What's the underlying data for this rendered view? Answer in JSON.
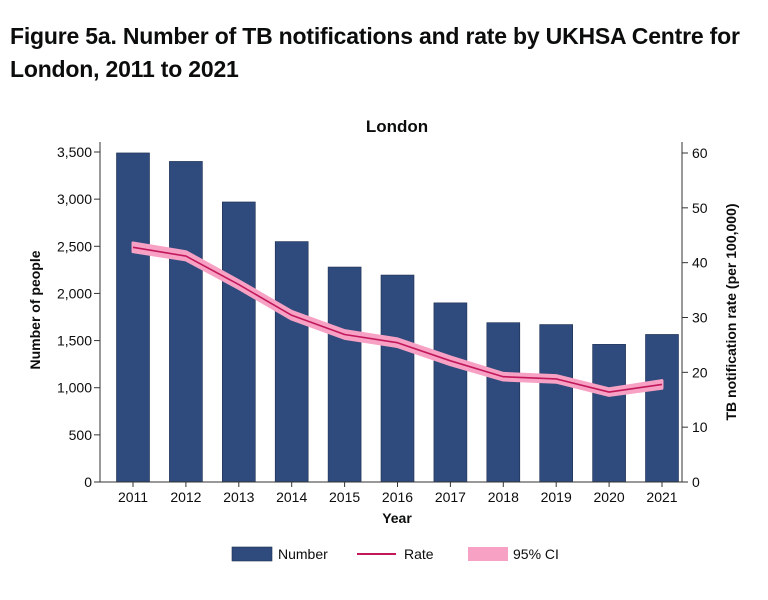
{
  "figure": {
    "title": "Figure 5a. Number of TB notifications and rate by UKHSA Centre for London, 2011 to 2021"
  },
  "chart_data": {
    "type": "bar",
    "title": "London",
    "xlabel": "Year",
    "ylabel": "Number of people",
    "y2label": "TB notification rate (per 100,000)",
    "categories": [
      "2011",
      "2012",
      "2013",
      "2014",
      "2015",
      "2016",
      "2017",
      "2018",
      "2019",
      "2020",
      "2021"
    ],
    "series": [
      {
        "name": "Number",
        "type": "bar",
        "axis": "left",
        "color": "#2f4a7c",
        "values": [
          3490,
          3400,
          2970,
          2550,
          2280,
          2195,
          1900,
          1690,
          1670,
          1460,
          1565
        ]
      },
      {
        "name": "Rate",
        "type": "line",
        "axis": "right",
        "color": "#c2185b",
        "values": [
          42.8,
          41.2,
          36.0,
          30.4,
          26.9,
          25.4,
          22.1,
          19.2,
          18.8,
          16.4,
          17.8
        ]
      },
      {
        "name": "95% CI",
        "type": "band",
        "axis": "right",
        "color": "#f7a1c4",
        "lower": [
          42.0,
          40.5,
          35.3,
          29.7,
          26.2,
          24.7,
          21.4,
          18.6,
          18.2,
          15.8,
          17.1
        ],
        "upper": [
          43.6,
          42.0,
          36.7,
          31.1,
          27.6,
          26.1,
          22.8,
          19.8,
          19.4,
          17.0,
          18.5
        ]
      }
    ],
    "ylim": [
      0,
      3500
    ],
    "yticks": [
      0,
      500,
      1000,
      1500,
      2000,
      2500,
      3000,
      3500
    ],
    "ytick_labels": [
      "0",
      "500",
      "1,000",
      "1,500",
      "2,000",
      "2,500",
      "3,000",
      "3,500"
    ],
    "y2lim": [
      0,
      60
    ],
    "y2ticks": [
      0,
      10,
      20,
      30,
      40,
      50,
      60
    ],
    "y2tick_labels": [
      "0",
      "10",
      "20",
      "30",
      "40",
      "50",
      "60"
    ],
    "grid": false,
    "legend_position": "bottom"
  }
}
